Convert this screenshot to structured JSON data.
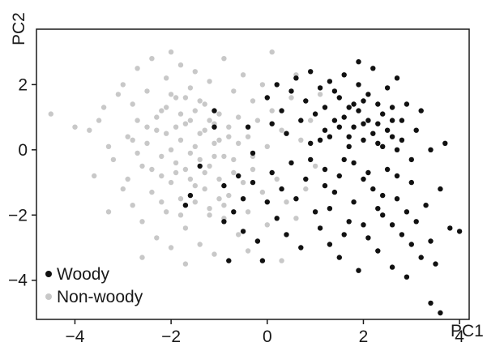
{
  "chart_data": {
    "type": "scatter",
    "title": "",
    "xlabel": "PC1",
    "ylabel": "PC2",
    "xlim": [
      -4.8,
      4.2
    ],
    "ylim": [
      -5.2,
      3.7
    ],
    "xticks": [
      -4,
      -2,
      0,
      2,
      4
    ],
    "xtick_labels": [
      "−4",
      "−2",
      "0",
      "2",
      "4"
    ],
    "yticks": [
      -4,
      -2,
      0,
      2
    ],
    "ytick_labels": [
      "−4",
      "−2",
      "0",
      "2"
    ],
    "grid": false,
    "legend_position": "bottom-left",
    "series": [
      {
        "name": "Non-woody",
        "color": "#c8c8c8",
        "points": [
          [
            -4.5,
            1.1
          ],
          [
            -4.0,
            0.7
          ],
          [
            -3.7,
            0.6
          ],
          [
            -3.5,
            0.9
          ],
          [
            -3.4,
            1.3
          ],
          [
            -3.3,
            0.1
          ],
          [
            -3.2,
            -0.3
          ],
          [
            -3.1,
            1.7
          ],
          [
            -3.0,
            -1.2
          ],
          [
            -3.0,
            2.0
          ],
          [
            -2.9,
            0.4
          ],
          [
            -2.9,
            -0.9
          ],
          [
            -2.8,
            1.4
          ],
          [
            -2.8,
            -1.7
          ],
          [
            -2.7,
            2.5
          ],
          [
            -2.7,
            0.9
          ],
          [
            -2.6,
            -0.5
          ],
          [
            -2.6,
            -2.2
          ],
          [
            -2.5,
            1.8
          ],
          [
            -2.5,
            0.2
          ],
          [
            -2.4,
            -1.3
          ],
          [
            -2.4,
            2.8
          ],
          [
            -2.3,
            -2.7
          ],
          [
            -2.3,
            0.6
          ],
          [
            -2.2,
            1.2
          ],
          [
            -2.2,
            -0.8
          ],
          [
            -2.1,
            2.2
          ],
          [
            -2.1,
            -1.9
          ],
          [
            -2.0,
            0.0
          ],
          [
            -2.0,
            3.0
          ],
          [
            -2.0,
            -3.0
          ],
          [
            -1.9,
            1.6
          ],
          [
            -1.9,
            -0.4
          ],
          [
            -1.8,
            -1.5
          ],
          [
            -1.8,
            2.6
          ],
          [
            -1.7,
            0.8
          ],
          [
            -1.7,
            -2.4
          ],
          [
            -1.6,
            1.9
          ],
          [
            -1.6,
            -0.1
          ],
          [
            -1.5,
            -1.1
          ],
          [
            -1.5,
            2.4
          ],
          [
            -1.4,
            0.5
          ],
          [
            -1.4,
            -2.9
          ],
          [
            -1.3,
            1.4
          ],
          [
            -1.3,
            -0.7
          ],
          [
            -1.2,
            2.1
          ],
          [
            -1.2,
            -1.8
          ],
          [
            -1.1,
            0.2
          ],
          [
            -1.1,
            -3.2
          ],
          [
            -1.0,
            1.1
          ],
          [
            -1.0,
            -0.9
          ],
          [
            -0.9,
            2.8
          ],
          [
            -0.9,
            -2.1
          ],
          [
            -0.8,
            0.7
          ],
          [
            -0.8,
            -1.4
          ],
          [
            -0.7,
            1.8
          ],
          [
            -0.7,
            -0.3
          ],
          [
            -0.6,
            -2.6
          ],
          [
            -0.6,
            1.0
          ],
          [
            -0.5,
            -1.0
          ],
          [
            -0.5,
            2.3
          ],
          [
            -0.4,
            0.4
          ],
          [
            -0.4,
            -1.9
          ],
          [
            -0.3,
            1.5
          ],
          [
            -0.3,
            -0.6
          ],
          [
            -0.2,
            -2.8
          ],
          [
            -0.2,
            0.9
          ],
          [
            -0.1,
            -1.3
          ],
          [
            -0.1,
            2.0
          ],
          [
            0.0,
            0.1
          ],
          [
            0.0,
            -2.3
          ],
          [
            0.1,
            1.2
          ],
          [
            0.1,
            3.0
          ],
          [
            0.2,
            -0.9
          ],
          [
            0.3,
            0.6
          ],
          [
            0.4,
            -1.6
          ],
          [
            0.5,
            1.6
          ],
          [
            0.6,
            -2.1
          ],
          [
            0.7,
            0.3
          ],
          [
            0.8,
            -1.2
          ],
          [
            0.9,
            0.9
          ],
          [
            1.0,
            -0.5
          ],
          [
            1.1,
            1.7
          ],
          [
            0.6,
            2.3
          ],
          [
            -0.4,
            -3.1
          ],
          [
            -2.6,
            -3.3
          ],
          [
            -3.3,
            -1.9
          ],
          [
            -3.6,
            -0.8
          ],
          [
            -1.7,
            -3.5
          ],
          [
            0.3,
            -3.4
          ],
          [
            -2.3,
            1.0
          ],
          [
            -2.2,
            -0.2
          ],
          [
            -2.1,
            0.5
          ],
          [
            -2.0,
            -1.0
          ],
          [
            -1.9,
            0.7
          ],
          [
            -1.8,
            0.3
          ],
          [
            -1.7,
            -0.6
          ],
          [
            -1.6,
            0.9
          ],
          [
            -1.5,
            0.1
          ],
          [
            -1.4,
            -0.3
          ],
          [
            -1.3,
            0.6
          ],
          [
            -1.2,
            -0.5
          ],
          [
            -1.1,
            0.8
          ],
          [
            -1.0,
            0.3
          ],
          [
            -0.9,
            -0.2
          ],
          [
            -0.8,
            0.4
          ],
          [
            -1.9,
            -0.7
          ],
          [
            -1.6,
            -0.9
          ],
          [
            -1.3,
            -1.2
          ],
          [
            -1.0,
            -1.5
          ],
          [
            -2.1,
            1.3
          ],
          [
            -1.8,
            1.1
          ],
          [
            -1.5,
            1.2
          ],
          [
            -1.2,
            0.9
          ],
          [
            -2.4,
            -0.6
          ],
          [
            -2.5,
            0.7
          ],
          [
            -1.4,
            1.5
          ],
          [
            -1.7,
            1.6
          ],
          [
            -2.0,
            1.7
          ],
          [
            -1.1,
            -0.2
          ],
          [
            -0.6,
            0.2
          ],
          [
            -0.7,
            -0.7
          ],
          [
            -0.3,
            -0.2
          ],
          [
            -2.7,
            -0.1
          ],
          [
            -2.8,
            0.3
          ],
          [
            -1.5,
            -1.6
          ],
          [
            -1.2,
            -2.0
          ],
          [
            -1.8,
            -2.0
          ],
          [
            -2.2,
            -1.6
          ],
          [
            -0.9,
            -1.7
          ]
        ]
      },
      {
        "name": "Woody",
        "color": "#111111",
        "points": [
          [
            -1.7,
            -1.7
          ],
          [
            -1.6,
            -1.4
          ],
          [
            -1.4,
            -0.5
          ],
          [
            -1.1,
            1.2
          ],
          [
            -1.1,
            0.7
          ],
          [
            -0.9,
            -1.1
          ],
          [
            -0.9,
            -2.2
          ],
          [
            -0.8,
            -3.4
          ],
          [
            -0.7,
            -1.9
          ],
          [
            -0.6,
            -0.8
          ],
          [
            -0.5,
            -1.5
          ],
          [
            -0.5,
            -2.5
          ],
          [
            -0.4,
            0.7
          ],
          [
            -0.3,
            -0.1
          ],
          [
            -0.3,
            -1.0
          ],
          [
            -0.2,
            -2.8
          ],
          [
            -0.1,
            -3.4
          ],
          [
            0.0,
            -1.6
          ],
          [
            0.0,
            1.6
          ],
          [
            0.1,
            0.8
          ],
          [
            0.1,
            -0.7
          ],
          [
            0.2,
            -2.1
          ],
          [
            0.2,
            2.0
          ],
          [
            0.3,
            1.2
          ],
          [
            0.3,
            -1.2
          ],
          [
            0.4,
            0.5
          ],
          [
            0.4,
            -2.6
          ],
          [
            0.5,
            1.8
          ],
          [
            0.5,
            -0.4
          ],
          [
            0.6,
            2.2
          ],
          [
            0.6,
            -1.5
          ],
          [
            0.7,
            0.9
          ],
          [
            0.7,
            -3.0
          ],
          [
            0.8,
            1.5
          ],
          [
            0.8,
            -0.9
          ],
          [
            0.9,
            2.4
          ],
          [
            0.9,
            0.2
          ],
          [
            1.0,
            -1.9
          ],
          [
            1.0,
            1.1
          ],
          [
            1.1,
            -2.4
          ],
          [
            1.1,
            1.9
          ],
          [
            1.2,
            -0.6
          ],
          [
            1.2,
            0.6
          ],
          [
            1.3,
            -2.9
          ],
          [
            1.3,
            2.1
          ],
          [
            1.4,
            -1.3
          ],
          [
            1.4,
            0.9
          ],
          [
            1.5,
            -3.3
          ],
          [
            1.5,
            1.6
          ],
          [
            1.6,
            -0.3
          ],
          [
            1.6,
            2.3
          ],
          [
            1.7,
            -2.2
          ],
          [
            1.7,
            0.4
          ],
          [
            1.8,
            -1.6
          ],
          [
            1.8,
            1.4
          ],
          [
            1.9,
            -3.7
          ],
          [
            1.9,
            2.0
          ],
          [
            2.0,
            -0.9
          ],
          [
            2.0,
            0.8
          ],
          [
            2.1,
            -2.7
          ],
          [
            2.1,
            1.7
          ],
          [
            2.2,
            -1.2
          ],
          [
            2.2,
            2.5
          ],
          [
            2.3,
            0.2
          ],
          [
            2.3,
            -3.1
          ],
          [
            2.4,
            1.1
          ],
          [
            2.4,
            -2.0
          ],
          [
            2.5,
            1.9
          ],
          [
            2.5,
            -0.6
          ],
          [
            2.6,
            -3.6
          ],
          [
            2.6,
            0.9
          ],
          [
            2.7,
            -1.5
          ],
          [
            2.7,
            2.2
          ],
          [
            2.8,
            -2.6
          ],
          [
            2.8,
            0.3
          ],
          [
            2.9,
            -3.9
          ],
          [
            2.9,
            1.4
          ],
          [
            3.0,
            -1.0
          ],
          [
            3.0,
            -2.9
          ],
          [
            3.1,
            0.6
          ],
          [
            3.1,
            -2.2
          ],
          [
            3.2,
            -3.3
          ],
          [
            3.2,
            1.2
          ],
          [
            3.3,
            -1.7
          ],
          [
            3.4,
            -2.8
          ],
          [
            3.4,
            0.0
          ],
          [
            3.5,
            -3.5
          ],
          [
            3.6,
            -1.2
          ],
          [
            3.7,
            0.2
          ],
          [
            3.8,
            -2.4
          ],
          [
            4.0,
            -2.5
          ],
          [
            3.4,
            -4.7
          ],
          [
            3.6,
            -5.0
          ],
          [
            1.9,
            2.7
          ],
          [
            1.2,
            1.3
          ],
          [
            1.3,
            0.4
          ],
          [
            1.5,
            0.7
          ],
          [
            1.6,
            1.0
          ],
          [
            1.7,
            0.1
          ],
          [
            1.8,
            0.7
          ],
          [
            1.9,
            1.2
          ],
          [
            2.0,
            0.3
          ],
          [
            2.1,
            0.9
          ],
          [
            2.2,
            0.5
          ],
          [
            2.3,
            1.4
          ],
          [
            2.4,
            0.1
          ],
          [
            2.5,
            0.6
          ],
          [
            2.6,
            1.3
          ],
          [
            2.7,
            0.0
          ],
          [
            2.8,
            0.9
          ],
          [
            1.1,
            0.3
          ],
          [
            1.4,
            1.8
          ],
          [
            1.7,
            1.3
          ],
          [
            2.0,
            1.5
          ],
          [
            2.3,
            0.8
          ],
          [
            2.6,
            0.4
          ],
          [
            0.9,
            -0.3
          ],
          [
            1.2,
            -1.1
          ],
          [
            1.5,
            -0.8
          ],
          [
            1.8,
            -0.4
          ],
          [
            2.1,
            -0.7
          ],
          [
            2.4,
            -1.4
          ],
          [
            2.7,
            -0.8
          ],
          [
            3.0,
            -0.3
          ],
          [
            1.3,
            -1.8
          ],
          [
            1.6,
            -2.6
          ],
          [
            2.0,
            -2.3
          ],
          [
            2.3,
            -1.8
          ],
          [
            2.6,
            -2.3
          ],
          [
            2.9,
            -1.9
          ]
        ]
      }
    ]
  }
}
